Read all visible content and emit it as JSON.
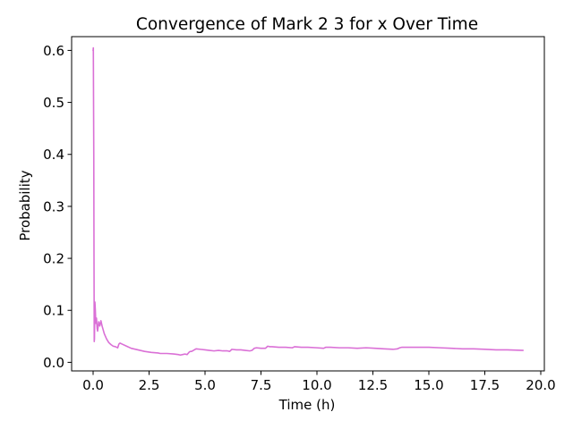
{
  "chart_data": {
    "type": "line",
    "title": "Convergence of Mark 2 3 for x Over Time",
    "xlabel": "Time (h)",
    "ylabel": "Probability",
    "xlim": [
      -0.96,
      20.16
    ],
    "ylim": [
      -0.0165,
      0.6265
    ],
    "xticks": [
      0.0,
      2.5,
      5.0,
      7.5,
      10.0,
      12.5,
      15.0,
      17.5,
      20.0
    ],
    "xtick_labels": [
      "0.0",
      "2.5",
      "5.0",
      "7.5",
      "10.0",
      "12.5",
      "15.0",
      "17.5",
      "20.0"
    ],
    "yticks": [
      0.0,
      0.1,
      0.2,
      0.3,
      0.4,
      0.5,
      0.6
    ],
    "ytick_labels": [
      "0.0",
      "0.1",
      "0.2",
      "0.3",
      "0.4",
      "0.5",
      "0.6"
    ],
    "grid": false,
    "color": "#da70d6",
    "series": [
      {
        "x": [
          0.0,
          0.01,
          0.02,
          0.03,
          0.04,
          0.05,
          0.06,
          0.08,
          0.1,
          0.12,
          0.15,
          0.18,
          0.2,
          0.25,
          0.3,
          0.35,
          0.4,
          0.5,
          0.6,
          0.7,
          0.8,
          0.9,
          1.0,
          1.1,
          1.15,
          1.2,
          1.3,
          1.5,
          1.7,
          2.0,
          2.3,
          2.6,
          2.9,
          3.0,
          3.3,
          3.6,
          3.8,
          3.9,
          4.0,
          4.1,
          4.2,
          4.3,
          4.35,
          4.4,
          4.6,
          4.8,
          5.0,
          5.2,
          5.4,
          5.6,
          5.8,
          6.0,
          6.1,
          6.2,
          6.4,
          6.6,
          6.8,
          7.0,
          7.1,
          7.2,
          7.3,
          7.5,
          7.7,
          7.8,
          7.9,
          8.0,
          8.3,
          8.6,
          8.9,
          9.0,
          9.3,
          9.6,
          10.0,
          10.3,
          10.4,
          10.6,
          11.0,
          11.4,
          11.8,
          12.2,
          12.6,
          13.0,
          13.4,
          13.6,
          13.7,
          13.8,
          14.0,
          14.5,
          14.8,
          15.0,
          15.5,
          16.0,
          16.5,
          17.0,
          17.5,
          18.0,
          18.5,
          19.2
        ],
        "values": [
          0.6,
          0.605,
          0.5,
          0.4,
          0.2,
          0.04,
          0.045,
          0.116,
          0.1,
          0.075,
          0.085,
          0.065,
          0.06,
          0.078,
          0.07,
          0.08,
          0.07,
          0.055,
          0.045,
          0.038,
          0.034,
          0.031,
          0.03,
          0.028,
          0.035,
          0.037,
          0.035,
          0.031,
          0.027,
          0.024,
          0.021,
          0.019,
          0.018,
          0.017,
          0.017,
          0.016,
          0.015,
          0.014,
          0.015,
          0.016,
          0.015,
          0.02,
          0.021,
          0.021,
          0.026,
          0.025,
          0.024,
          0.023,
          0.022,
          0.023,
          0.022,
          0.022,
          0.021,
          0.025,
          0.024,
          0.024,
          0.023,
          0.022,
          0.023,
          0.027,
          0.028,
          0.027,
          0.027,
          0.031,
          0.03,
          0.03,
          0.029,
          0.029,
          0.028,
          0.03,
          0.029,
          0.029,
          0.028,
          0.027,
          0.029,
          0.029,
          0.028,
          0.028,
          0.027,
          0.028,
          0.027,
          0.026,
          0.025,
          0.026,
          0.028,
          0.029,
          0.029,
          0.029,
          0.029,
          0.029,
          0.028,
          0.027,
          0.026,
          0.026,
          0.025,
          0.024,
          0.024,
          0.023
        ]
      }
    ]
  }
}
